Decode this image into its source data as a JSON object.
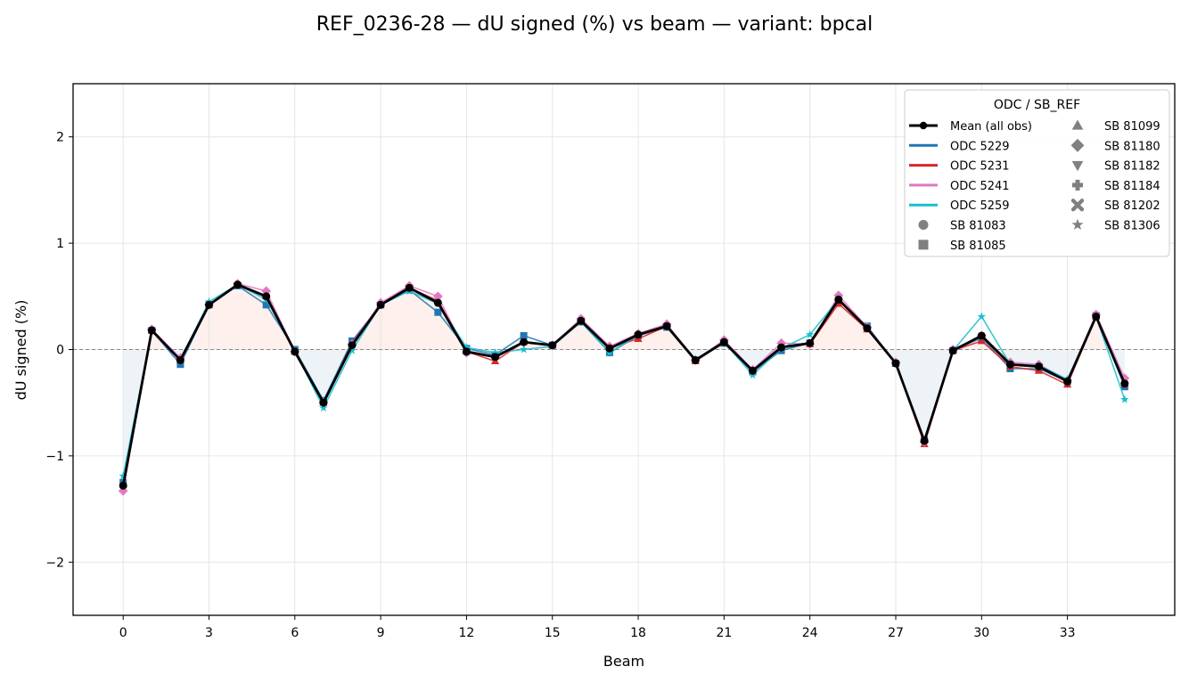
{
  "chart_data": {
    "type": "line",
    "title": "REF_0236-28  —  dU signed (%) vs beam  —  variant: bpcal",
    "xlabel": "Beam",
    "ylabel": "dU signed (%)",
    "xlim": [
      -1.75,
      36.75
    ],
    "ylim": [
      -2.5,
      2.5
    ],
    "xticks": [
      0,
      3,
      6,
      9,
      12,
      15,
      18,
      21,
      24,
      27,
      30,
      33
    ],
    "xtick_labels": [
      "0",
      "3",
      "6",
      "9",
      "12",
      "15",
      "18",
      "21",
      "24",
      "27",
      "30",
      "33"
    ],
    "yticks": [
      -2,
      -1,
      0,
      1,
      2
    ],
    "ytick_labels": [
      "−2",
      "−1",
      "0",
      "1",
      "2"
    ],
    "grid": true,
    "zero_line": true,
    "x": [
      0,
      1,
      2,
      3,
      4,
      5,
      6,
      7,
      8,
      9,
      10,
      11,
      12,
      13,
      14,
      15,
      16,
      17,
      18,
      19,
      20,
      21,
      22,
      23,
      24,
      25,
      26,
      27,
      28,
      29,
      30,
      31,
      32,
      33,
      34,
      35
    ],
    "mean": {
      "name": "Mean (all obs)",
      "color": "#000000",
      "values": [
        -1.28,
        0.18,
        -0.1,
        0.42,
        0.61,
        0.5,
        -0.02,
        -0.5,
        0.04,
        0.42,
        0.58,
        0.44,
        -0.02,
        -0.07,
        0.07,
        0.04,
        0.27,
        0.01,
        0.14,
        0.22,
        -0.1,
        0.07,
        -0.2,
        0.02,
        0.06,
        0.47,
        0.2,
        -0.13,
        -0.86,
        -0.01,
        0.13,
        -0.14,
        -0.16,
        -0.3,
        0.31,
        -0.32
      ]
    },
    "series": [
      {
        "name": "ODC 5229",
        "color": "#1f77b4",
        "marker": "square",
        "values": [
          -1.25,
          0.18,
          -0.14,
          0.42,
          0.6,
          0.42,
          0.0,
          -0.48,
          0.08,
          0.42,
          0.56,
          0.35,
          0.01,
          -0.05,
          0.13,
          0.04,
          0.26,
          -0.03,
          0.13,
          0.21,
          -0.1,
          0.06,
          -0.21,
          -0.01,
          0.06,
          0.46,
          0.22,
          -0.13,
          -0.85,
          -0.01,
          0.11,
          -0.18,
          -0.18,
          -0.3,
          0.32,
          -0.35
        ]
      },
      {
        "name": "ODC 5231",
        "color": "#d62728",
        "marker": "triangle-up",
        "values": [
          -1.27,
          0.18,
          -0.1,
          0.42,
          0.61,
          0.5,
          -0.02,
          -0.5,
          0.06,
          0.43,
          0.58,
          0.46,
          -0.02,
          -0.11,
          0.07,
          0.04,
          0.27,
          0.02,
          0.1,
          0.22,
          -0.11,
          0.07,
          -0.2,
          0.03,
          0.05,
          0.43,
          0.19,
          -0.13,
          -0.89,
          -0.01,
          0.08,
          -0.16,
          -0.2,
          -0.33,
          0.31,
          -0.33
        ]
      },
      {
        "name": "ODC 5241",
        "color": "#e377c2",
        "marker": "diamond",
        "values": [
          -1.33,
          0.19,
          -0.08,
          0.42,
          0.62,
          0.55,
          -0.02,
          -0.5,
          0.05,
          0.44,
          0.6,
          0.5,
          -0.03,
          -0.07,
          0.07,
          0.04,
          0.29,
          0.03,
          0.15,
          0.24,
          -0.1,
          0.09,
          -0.19,
          0.06,
          0.05,
          0.51,
          0.21,
          -0.12,
          -0.87,
          0.0,
          0.13,
          -0.12,
          -0.14,
          -0.29,
          0.33,
          -0.27
        ]
      },
      {
        "name": "ODC 5259",
        "color": "#17becf",
        "marker": "star",
        "values": [
          -1.19,
          0.18,
          -0.1,
          0.45,
          0.61,
          0.47,
          -0.01,
          -0.55,
          -0.01,
          0.42,
          0.55,
          0.43,
          0.02,
          -0.03,
          0.0,
          0.03,
          0.26,
          -0.03,
          0.14,
          0.22,
          -0.09,
          0.07,
          -0.24,
          0.01,
          0.14,
          0.47,
          0.2,
          -0.13,
          -0.85,
          -0.01,
          0.31,
          -0.14,
          -0.15,
          -0.28,
          0.31,
          -0.47
        ]
      }
    ],
    "legend": {
      "title": "ODC / SB_REF",
      "position": "top-right",
      "line_entries": [
        "Mean (all obs)",
        "ODC 5229",
        "ODC 5231",
        "ODC 5241",
        "ODC 5259"
      ],
      "marker_entries": [
        {
          "label": "SB 81083",
          "marker": "circle"
        },
        {
          "label": "SB 81085",
          "marker": "square"
        },
        {
          "label": "SB 81099",
          "marker": "triangle-up"
        },
        {
          "label": "SB 81180",
          "marker": "diamond"
        },
        {
          "label": "SB 81182",
          "marker": "triangle-down"
        },
        {
          "label": "SB 81184",
          "marker": "plus"
        },
        {
          "label": "SB 81202",
          "marker": "x"
        },
        {
          "label": "SB 81306",
          "marker": "star"
        }
      ],
      "marker_color": "#808080"
    },
    "fill_positive_color": "#fbe3de",
    "fill_negative_color": "#dfe9f0"
  }
}
